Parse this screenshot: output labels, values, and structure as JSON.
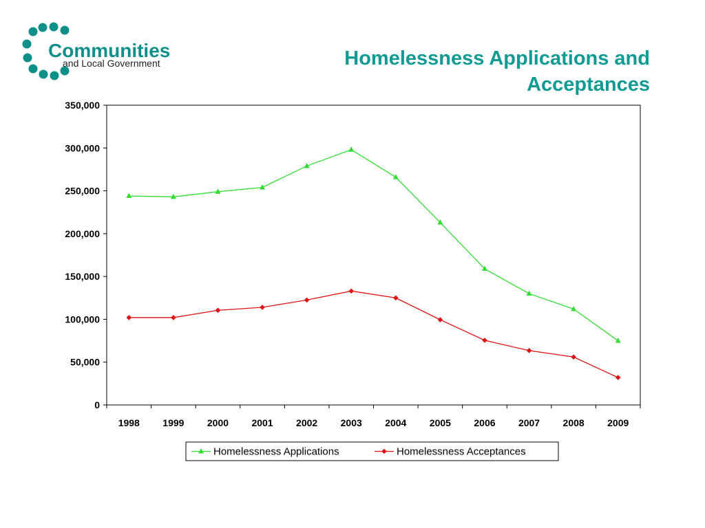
{
  "logo": {
    "main": "Communities",
    "sub": "and Local Government",
    "color": "#0e8f89"
  },
  "title": {
    "line1": "Homelessness Applications and",
    "line2": "Acceptances"
  },
  "chart_data": {
    "type": "line",
    "title": "Homelessness Applications and Acceptances",
    "xlabel": "",
    "ylabel": "",
    "categories": [
      "1998",
      "1999",
      "2000",
      "2001",
      "2002",
      "2003",
      "2004",
      "2005",
      "2006",
      "2007",
      "2008",
      "2009"
    ],
    "ylim": [
      0,
      350000
    ],
    "yticks": [
      0,
      50000,
      100000,
      150000,
      200000,
      250000,
      300000,
      350000
    ],
    "ytick_labels": [
      "0",
      "50,000",
      "100,000",
      "150,000",
      "200,000",
      "250,000",
      "300,000",
      "350,000"
    ],
    "grid": false,
    "legend_position": "bottom",
    "series": [
      {
        "name": "Homelessness Applications",
        "color": "#33dd33",
        "marker": "triangle",
        "values": [
          244000,
          243000,
          249000,
          254000,
          279000,
          298000,
          266000,
          213000,
          159000,
          130000,
          112000,
          75000
        ]
      },
      {
        "name": "Homelessness Acceptances",
        "color": "#dd1111",
        "marker": "diamond",
        "values": [
          102000,
          102000,
          110500,
          114000,
          122500,
          133000,
          125000,
          99500,
          75500,
          63500,
          56000,
          32000
        ]
      }
    ]
  }
}
